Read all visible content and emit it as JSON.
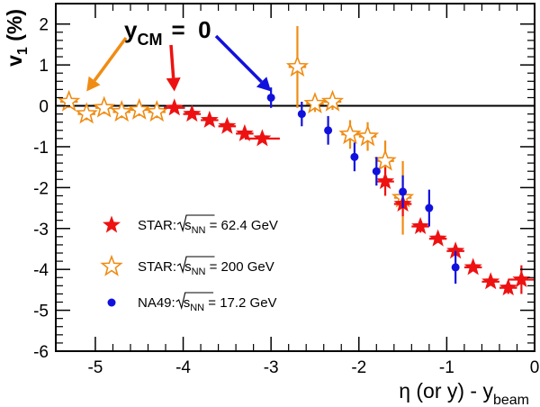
{
  "chart_data": {
    "type": "scatter",
    "title": "",
    "xlabel": {
      "main": "η (or y) - y",
      "sub": "beam"
    },
    "ylabel": {
      "main": "v",
      "sub": "1",
      "suffix": " (%)"
    },
    "xlim": [
      -5.45,
      0
    ],
    "ylim": [
      -6,
      2.5
    ],
    "xticks": [
      -5,
      -4,
      -3,
      -2,
      -1,
      0
    ],
    "yticks": [
      -6,
      -5,
      -4,
      -3,
      -2,
      -1,
      0,
      1,
      2
    ],
    "zero_line": true,
    "annotation": {
      "prefix": "y",
      "sub": "CM",
      "suffix": "=  0",
      "arrows_to_x": [
        -5.1,
        -4.1,
        -3.0
      ]
    },
    "legend_position": "lower-left",
    "series": [
      {
        "name_prefix": "STAR:",
        "name_sqrt": "s",
        "name_sqrt_sub": "NN",
        "name_suffix": " = 62.4 GeV",
        "marker": "star-filled",
        "color": "#ee1111",
        "points": [
          {
            "x": -4.1,
            "y": -0.05,
            "xerr": 0.12,
            "yerr": 0.05
          },
          {
            "x": -3.9,
            "y": -0.2,
            "xerr": 0.1,
            "yerr": 0.05
          },
          {
            "x": -3.7,
            "y": -0.35,
            "xerr": 0.1,
            "yerr": 0.05
          },
          {
            "x": -3.5,
            "y": -0.5,
            "xerr": 0.1,
            "yerr": 0.05
          },
          {
            "x": -3.3,
            "y": -0.68,
            "xerr": 0.1,
            "yerr": 0.05
          },
          {
            "x": -3.1,
            "y": -0.8,
            "xerr": 0.2,
            "yerr": 0.05
          },
          {
            "x": -1.7,
            "y": -1.85,
            "xerr": 0.1,
            "yerr": 0.35
          },
          {
            "x": -1.5,
            "y": -2.4,
            "xerr": 0.1,
            "yerr": 0.3
          },
          {
            "x": -1.3,
            "y": -2.95,
            "xerr": 0.1,
            "yerr": 0.15
          },
          {
            "x": -1.1,
            "y": -3.25,
            "xerr": 0.1,
            "yerr": 0.1
          },
          {
            "x": -0.9,
            "y": -3.55,
            "xerr": 0.1,
            "yerr": 0.1
          },
          {
            "x": -0.7,
            "y": -3.95,
            "xerr": 0.1,
            "yerr": 0.1
          },
          {
            "x": -0.5,
            "y": -4.3,
            "xerr": 0.1,
            "yerr": 0.1
          },
          {
            "x": -0.3,
            "y": -4.45,
            "xerr": 0.1,
            "yerr": 0.15
          },
          {
            "x": -0.15,
            "y": -4.25,
            "xerr": 0.15,
            "yerr": 0.35
          }
        ]
      },
      {
        "name_prefix": "STAR:",
        "name_sqrt": "s",
        "name_sqrt_sub": "NN",
        "name_suffix": " = 200 GeV",
        "marker": "star-open",
        "color": "#f08c14",
        "points": [
          {
            "x": -5.3,
            "y": 0.1,
            "xerr": 0.1,
            "yerr": 0.15
          },
          {
            "x": -5.1,
            "y": -0.2,
            "xerr": 0.1,
            "yerr": 0.15
          },
          {
            "x": -4.9,
            "y": -0.05,
            "xerr": 0.1,
            "yerr": 0.15
          },
          {
            "x": -4.7,
            "y": -0.15,
            "xerr": 0.1,
            "yerr": 0.15
          },
          {
            "x": -4.5,
            "y": -0.1,
            "xerr": 0.1,
            "yerr": 0.15
          },
          {
            "x": -4.3,
            "y": -0.15,
            "xerr": 0.1,
            "yerr": 0.15
          },
          {
            "x": -2.7,
            "y": 0.95,
            "xerr": 0.1,
            "yerr": 1.0
          },
          {
            "x": -2.5,
            "y": 0.05,
            "xerr": 0.1,
            "yerr": 0.2
          },
          {
            "x": -2.3,
            "y": 0.1,
            "xerr": 0.1,
            "yerr": 0.2
          },
          {
            "x": -2.1,
            "y": -0.7,
            "xerr": 0.1,
            "yerr": 0.35
          },
          {
            "x": -1.9,
            "y": -0.75,
            "xerr": 0.1,
            "yerr": 0.35
          },
          {
            "x": -1.7,
            "y": -1.35,
            "xerr": 0.1,
            "yerr": 0.5
          },
          {
            "x": -1.5,
            "y": -2.25,
            "xerr": 0.1,
            "yerr": 0.9
          }
        ]
      },
      {
        "name_prefix": "NA49:",
        "name_sqrt": "s",
        "name_sqrt_sub": "NN",
        "name_suffix": " = 17.2 GeV",
        "marker": "circle",
        "color": "#1111dd",
        "points": [
          {
            "x": -3.0,
            "y": 0.2,
            "yerr": 0.25
          },
          {
            "x": -2.65,
            "y": -0.2,
            "yerr": 0.3
          },
          {
            "x": -2.35,
            "y": -0.6,
            "yerr": 0.35
          },
          {
            "x": -2.05,
            "y": -1.25,
            "yerr": 0.35
          },
          {
            "x": -1.8,
            "y": -1.6,
            "yerr": 0.35
          },
          {
            "x": -1.5,
            "y": -2.1,
            "yerr": 0.4
          },
          {
            "x": -1.2,
            "y": -2.5,
            "yerr": 0.45
          },
          {
            "x": -0.9,
            "y": -3.95,
            "yerr": 0.4
          }
        ]
      }
    ]
  }
}
